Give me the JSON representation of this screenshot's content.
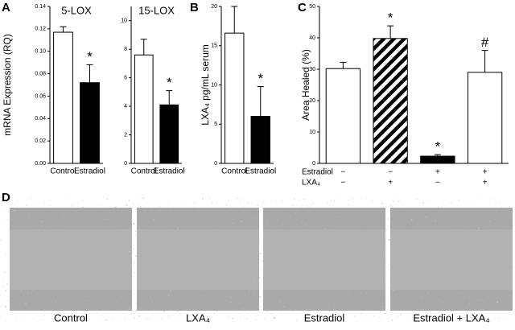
{
  "panel_labels": [
    "A",
    "B",
    "C",
    "D"
  ],
  "chart_data": [
    {
      "type": "bar",
      "title": "5-LOX",
      "y_label": "mRNA Expression (RQ)",
      "categories": [
        "Control",
        "Estradiol"
      ],
      "values": [
        0.117,
        0.072
      ],
      "errors": [
        0.005,
        0.016
      ],
      "annotations": [
        null,
        "*"
      ],
      "fills": [
        "white",
        "black"
      ],
      "ylim": [
        0,
        0.14
      ],
      "yticks": [
        {
          "value": 0,
          "label": "0.00"
        },
        0.02,
        0.04,
        0.06,
        0.08,
        {
          "value": 0.1,
          "label": "0.10"
        },
        0.12,
        0.14
      ]
    },
    {
      "type": "bar",
      "title": "15-LOX",
      "categories": [
        "Control",
        "Estradiol"
      ],
      "values": [
        7.6,
        4.1
      ],
      "errors": [
        1.1,
        1.0
      ],
      "annotations": [
        null,
        "*"
      ],
      "fills": [
        "white",
        "black"
      ],
      "ylim": [
        0,
        11
      ],
      "yticks": [
        0,
        2,
        4,
        6,
        8,
        10
      ]
    },
    {
      "type": "bar",
      "y_label": "LXA₄ pg/mL serum",
      "categories": [
        "Control",
        "Estradiol"
      ],
      "values": [
        16.6,
        6.0
      ],
      "errors": [
        3.4,
        3.8
      ],
      "annotations": [
        null,
        "*"
      ],
      "fills": [
        "white",
        "black"
      ],
      "ylim": [
        0,
        20
      ],
      "yticks": [
        0,
        5,
        10,
        15,
        20
      ]
    },
    {
      "type": "bar",
      "y_label": "Area Healed (%)",
      "categories": [
        null,
        null,
        null,
        null
      ],
      "values": [
        30.2,
        39.8,
        2.3,
        29.0
      ],
      "errors": [
        2.0,
        4.0,
        0.5,
        7.0
      ],
      "annotations": [
        null,
        "*",
        "*",
        "#"
      ],
      "fills": [
        "white",
        "hatch",
        "black",
        "white"
      ],
      "conditions": [
        {
          "name": "Estradiol",
          "signs": [
            "−",
            "−",
            "+",
            "+"
          ]
        },
        {
          "name": "LXA₄",
          "signs": [
            "−",
            "+",
            "−",
            "+"
          ]
        }
      ],
      "ylim": [
        0,
        50
      ],
      "yticks": [
        0,
        10,
        20,
        30,
        40,
        50
      ]
    }
  ],
  "images": {
    "captions": [
      "Control",
      "LXA₄",
      "Estradiol",
      "Estradiol + LXA₄"
    ]
  }
}
